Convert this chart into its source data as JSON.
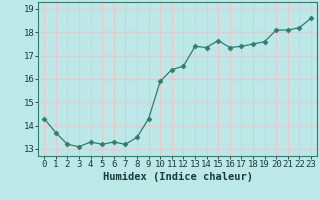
{
  "x": [
    0,
    1,
    2,
    3,
    4,
    5,
    6,
    7,
    8,
    9,
    10,
    11,
    12,
    13,
    14,
    15,
    16,
    17,
    18,
    19,
    20,
    21,
    22,
    23
  ],
  "y": [
    14.3,
    13.7,
    13.2,
    13.1,
    13.3,
    13.2,
    13.3,
    13.2,
    13.5,
    14.3,
    15.9,
    16.4,
    16.55,
    17.4,
    17.35,
    17.65,
    17.35,
    17.4,
    17.5,
    17.6,
    18.1,
    18.1,
    18.2,
    18.6
  ],
  "line_color": "#2e7d6e",
  "marker": "D",
  "marker_size": 2.5,
  "bg_color": "#bde8e8",
  "grid_color": "#e8c8c8",
  "xlabel": "Humidex (Indice chaleur)",
  "ylim": [
    12.7,
    19.3
  ],
  "xlim": [
    -0.5,
    23.5
  ],
  "yticks": [
    13,
    14,
    15,
    16,
    17,
    18,
    19
  ],
  "xticks": [
    0,
    1,
    2,
    3,
    4,
    5,
    6,
    7,
    8,
    9,
    10,
    11,
    12,
    13,
    14,
    15,
    16,
    17,
    18,
    19,
    20,
    21,
    22,
    23
  ],
  "tick_fontsize": 6.5,
  "xlabel_fontsize": 7.5
}
